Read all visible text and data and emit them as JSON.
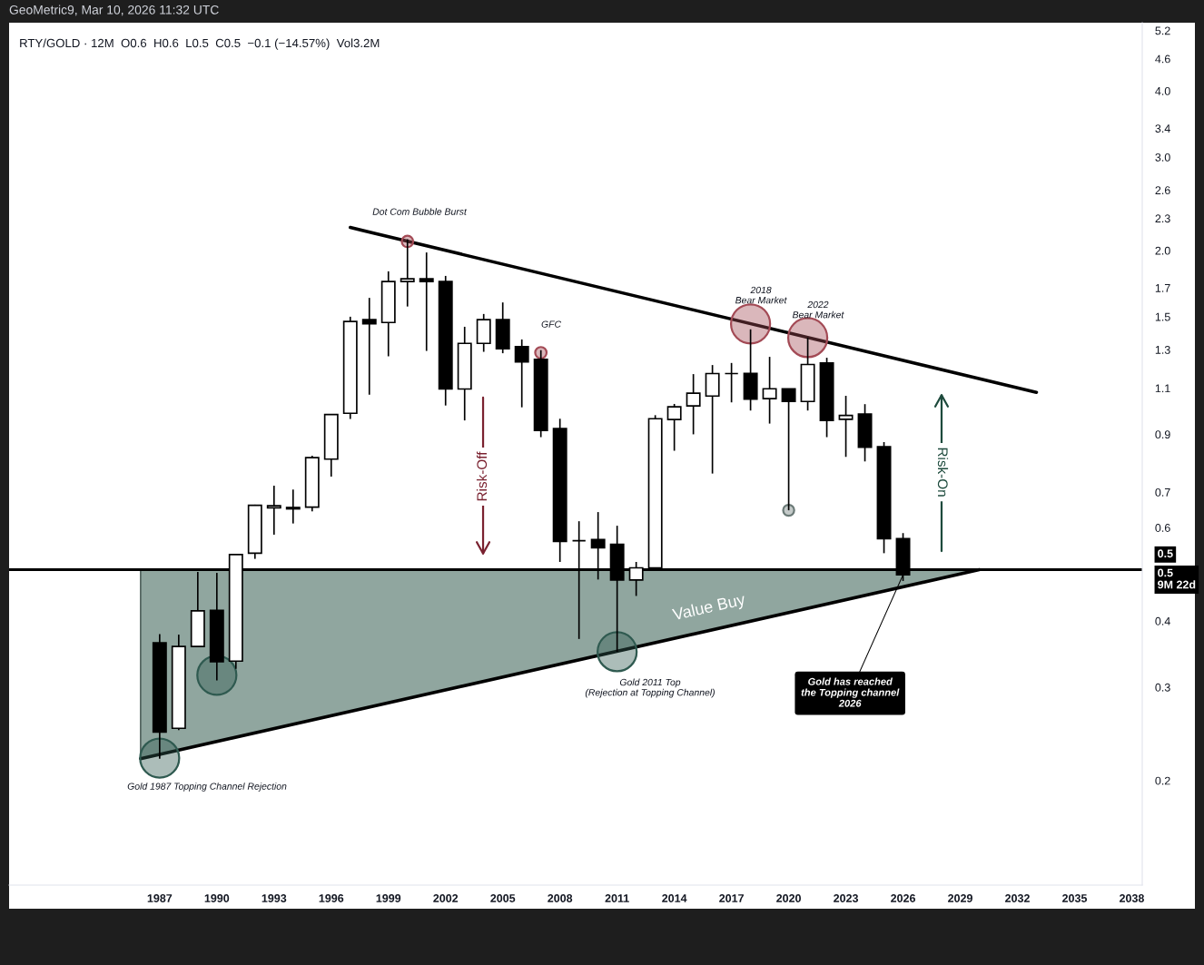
{
  "chart_data": {
    "type": "candlestick",
    "title": "RTY/GOLD · 12M  O0.6  H0.6  L0.5  C0.5  −0.1 (−14.57%)  Vol3.2M",
    "x": [
      1987,
      1988,
      1989,
      1990,
      1991,
      1992,
      1993,
      1994,
      1995,
      1996,
      1997,
      1998,
      1999,
      2000,
      2001,
      2002,
      2003,
      2004,
      2005,
      2006,
      2007,
      2008,
      2009,
      2010,
      2011,
      2012,
      2013,
      2014,
      2015,
      2016,
      2017,
      2018,
      2019,
      2020,
      2021,
      2022,
      2023,
      2024,
      2025,
      2026
    ],
    "ohlc": [
      [
        0.364,
        0.378,
        0.22,
        0.247
      ],
      [
        0.251,
        0.377,
        0.249,
        0.358
      ],
      [
        0.358,
        0.495,
        0.357,
        0.418
      ],
      [
        0.419,
        0.493,
        0.309,
        0.335
      ],
      [
        0.336,
        0.534,
        0.325,
        0.534
      ],
      [
        0.537,
        0.663,
        0.524,
        0.661
      ],
      [
        0.654,
        0.72,
        0.582,
        0.66
      ],
      [
        0.655,
        0.708,
        0.611,
        0.651
      ],
      [
        0.656,
        0.82,
        0.644,
        0.813
      ],
      [
        0.808,
        0.981,
        0.749,
        0.981
      ],
      [
        0.986,
        1.5,
        0.962,
        1.469
      ],
      [
        1.481,
        1.628,
        1.069,
        1.455
      ],
      [
        1.463,
        1.827,
        1.263,
        1.748
      ],
      [
        1.748,
        2.1,
        1.568,
        1.768
      ],
      [
        1.768,
        1.983,
        1.293,
        1.748
      ],
      [
        1.748,
        1.791,
        1.02,
        1.096
      ],
      [
        1.096,
        1.436,
        0.956,
        1.336
      ],
      [
        1.336,
        1.518,
        1.288,
        1.481
      ],
      [
        1.481,
        1.596,
        1.28,
        1.305
      ],
      [
        1.317,
        1.359,
        1.012,
        1.233
      ],
      [
        1.246,
        1.297,
        0.889,
        0.915
      ],
      [
        0.923,
        0.963,
        0.517,
        0.565
      ],
      [
        0.567,
        0.617,
        0.37,
        0.567
      ],
      [
        0.57,
        0.642,
        0.479,
        0.55
      ],
      [
        0.558,
        0.605,
        0.35,
        0.478
      ],
      [
        0.478,
        0.517,
        0.446,
        0.504
      ],
      [
        0.504,
        0.978,
        0.504,
        0.963
      ],
      [
        0.96,
        1.027,
        0.838,
        1.014
      ],
      [
        1.018,
        1.169,
        0.9,
        1.076
      ],
      [
        1.063,
        1.216,
        0.759,
        1.172
      ],
      [
        1.172,
        1.227,
        1.034,
        1.172
      ],
      [
        1.173,
        1.42,
        0.998,
        1.049
      ],
      [
        1.051,
        1.26,
        0.943,
        1.097
      ],
      [
        1.097,
        1.097,
        0.647,
        1.038
      ],
      [
        1.038,
        1.37,
        0.998,
        1.219
      ],
      [
        1.227,
        1.255,
        0.889,
        0.956
      ],
      [
        0.961,
        1.064,
        0.816,
        0.977
      ],
      [
        0.983,
        1.026,
        0.8,
        0.851
      ],
      [
        0.853,
        0.87,
        0.537,
        0.572
      ],
      [
        0.572,
        0.586,
        0.476,
        0.489
      ]
    ],
    "series": [
      {
        "type": "line",
        "x": [
          1986,
          2030
        ],
        "values": [
          0.22,
          0.5
        ],
        "color": "#000000"
      },
      {
        "type": "line",
        "x": [
          1997,
          2033
        ],
        "values": [
          2.21,
          1.08
        ],
        "color": "#000000"
      },
      {
        "type": "bubble",
        "x": [
          1987,
          1990,
          2000,
          2007,
          2011,
          2018,
          2020,
          2021
        ],
        "values": [
          0.2205,
          0.316,
          2.08,
          1.283,
          0.35,
          1.454,
          0.647,
          1.37
        ],
        "sizes": [
          1,
          1,
          0.085,
          0.085,
          1,
          1,
          0.08,
          1
        ],
        "colors": [
          "#2f5a50",
          "#2f5a50",
          "#a34a55",
          "#a34a55",
          "#2f5a50",
          "#a34a55",
          "#6b7a77",
          "#a34a55"
        ]
      }
    ],
    "ref_lines": [
      {
        "axis": "y",
        "value": 0.5,
        "label": "0.5",
        "color": "#000000"
      }
    ],
    "annotations": [
      "Dot Com Bubble Burst",
      "GFC",
      "2018\nBear Market",
      "2022\nBear Market",
      "Risk-Off",
      "Risk-On",
      "Value Buy",
      "Gold 2011 Top\n(Rejection at Topping Channel)",
      "Gold 1987 Topping Channel Rejection",
      {
        "text": "Gold has reached\nthe Topping channel\n2026",
        "x": 2026,
        "y": 0.489
      },
      "GeoMetric9, Mar 10, 2026 11:32 UTC",
      "0.5\n9M 22d"
    ],
    "log": "y",
    "xlim": [
      1979.1,
      2038.55
    ],
    "xticks": [
      1987,
      1990,
      1993,
      1996,
      1999,
      2002,
      2005,
      2008,
      2011,
      2014,
      2017,
      2020,
      2023,
      2026,
      2029,
      2032,
      2035,
      2038
    ],
    "ylim": [
      0.127,
      5.38
    ],
    "yticks": [
      0.2,
      0.3,
      0.4,
      0.6,
      0.7,
      0.9,
      1.1,
      1.3,
      1.5,
      1.7,
      {
        "value": 2,
        "label": "2.0"
      },
      2.3,
      2.6,
      {
        "value": 3,
        "label": "3.0"
      },
      3.4,
      {
        "value": 4,
        "label": "4.0"
      },
      4.6,
      5.2
    ]
  }
}
